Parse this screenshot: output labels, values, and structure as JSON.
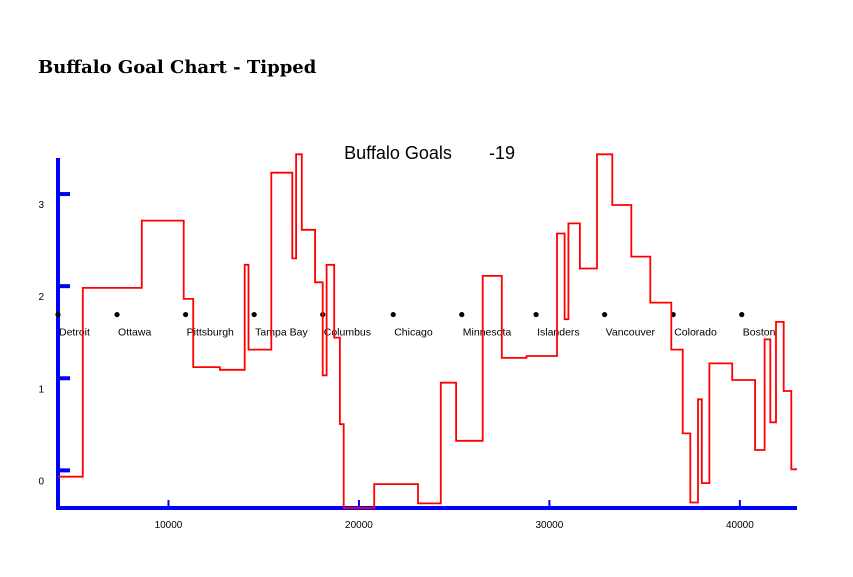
{
  "page": {
    "title": "Buffalo Goal Chart - Tipped"
  },
  "colors": {
    "axis": "#0000ff",
    "line": "#ff0000",
    "marker": "#000000"
  },
  "chart_data": {
    "type": "line",
    "title": "Buffalo Goals",
    "title_value": "-19",
    "xlabel": "",
    "ylabel": "",
    "xlim": [
      4200,
      43000
    ],
    "ylim": [
      -0.3,
      3.5
    ],
    "x_ticks": [
      10000,
      20000,
      30000,
      40000
    ],
    "y_ticks": [
      0,
      1,
      2,
      3
    ],
    "line_shape": "step",
    "grid": false,
    "series": [
      {
        "points": [
          [
            4200,
            0.04
          ],
          [
            5500,
            0.04
          ],
          [
            5500,
            2.09
          ],
          [
            8600,
            2.09
          ],
          [
            8600,
            2.82
          ],
          [
            10800,
            2.82
          ],
          [
            10800,
            1.97
          ],
          [
            11300,
            1.97
          ],
          [
            11300,
            1.23
          ],
          [
            12700,
            1.23
          ],
          [
            12700,
            1.2
          ],
          [
            14000,
            1.2
          ],
          [
            14000,
            2.34
          ],
          [
            14200,
            2.34
          ],
          [
            14200,
            1.42
          ],
          [
            15400,
            1.42
          ],
          [
            15400,
            3.34
          ],
          [
            16500,
            3.34
          ],
          [
            16500,
            2.41
          ],
          [
            16700,
            2.41
          ],
          [
            16700,
            3.54
          ],
          [
            17000,
            3.54
          ],
          [
            17000,
            2.72
          ],
          [
            17700,
            2.72
          ],
          [
            17700,
            2.15
          ],
          [
            18100,
            2.15
          ],
          [
            18100,
            1.14
          ],
          [
            18300,
            1.14
          ],
          [
            18300,
            2.34
          ],
          [
            18700,
            2.34
          ],
          [
            18700,
            1.55
          ],
          [
            19000,
            1.55
          ],
          [
            19000,
            0.61
          ],
          [
            19200,
            0.61
          ],
          [
            19200,
            -0.3
          ],
          [
            20800,
            -0.3
          ],
          [
            20800,
            -0.04
          ],
          [
            23100,
            -0.04
          ],
          [
            23100,
            -0.25
          ],
          [
            24300,
            -0.25
          ],
          [
            24300,
            1.06
          ],
          [
            25100,
            1.06
          ],
          [
            25100,
            0.43
          ],
          [
            26500,
            0.43
          ],
          [
            26500,
            2.22
          ],
          [
            27500,
            2.22
          ],
          [
            27500,
            1.33
          ],
          [
            28800,
            1.33
          ],
          [
            28800,
            1.35
          ],
          [
            30400,
            1.35
          ],
          [
            30400,
            2.68
          ],
          [
            30800,
            2.68
          ],
          [
            30800,
            1.75
          ],
          [
            31000,
            1.75
          ],
          [
            31000,
            2.79
          ],
          [
            31600,
            2.79
          ],
          [
            31600,
            2.3
          ],
          [
            32500,
            2.3
          ],
          [
            32500,
            3.54
          ],
          [
            33300,
            3.54
          ],
          [
            33300,
            2.99
          ],
          [
            34300,
            2.99
          ],
          [
            34300,
            2.43
          ],
          [
            35300,
            2.43
          ],
          [
            35300,
            1.93
          ],
          [
            36400,
            1.93
          ],
          [
            36400,
            1.42
          ],
          [
            37000,
            1.42
          ],
          [
            37000,
            0.51
          ],
          [
            37400,
            0.51
          ],
          [
            37400,
            -0.24
          ],
          [
            37800,
            -0.24
          ],
          [
            37800,
            0.88
          ],
          [
            38000,
            0.88
          ],
          [
            38000,
            -0.03
          ],
          [
            38400,
            -0.03
          ],
          [
            38400,
            1.27
          ],
          [
            39600,
            1.27
          ],
          [
            39600,
            1.09
          ],
          [
            40800,
            1.09
          ],
          [
            40800,
            0.33
          ],
          [
            41300,
            0.33
          ],
          [
            41300,
            1.53
          ],
          [
            41600,
            1.53
          ],
          [
            41600,
            0.63
          ],
          [
            41900,
            0.63
          ],
          [
            41900,
            1.72
          ],
          [
            42300,
            1.72
          ],
          [
            42300,
            0.97
          ],
          [
            42700,
            0.97
          ],
          [
            42700,
            0.12
          ],
          [
            43000,
            0.12
          ]
        ]
      }
    ],
    "markers": [
      {
        "x": 4200,
        "label": "Detroit"
      },
      {
        "x": 7300,
        "label": "Ottawa"
      },
      {
        "x": 10900,
        "label": "Pittsburgh"
      },
      {
        "x": 14500,
        "label": "Tampa Bay"
      },
      {
        "x": 18100,
        "label": "Columbus"
      },
      {
        "x": 21800,
        "label": "Chicago"
      },
      {
        "x": 25400,
        "label": "Minnesota"
      },
      {
        "x": 29300,
        "label": "Islanders"
      },
      {
        "x": 32900,
        "label": "Vancouver"
      },
      {
        "x": 36500,
        "label": "Colorado"
      },
      {
        "x": 40100,
        "label": "Boston"
      }
    ],
    "marker_y": 1.8
  }
}
